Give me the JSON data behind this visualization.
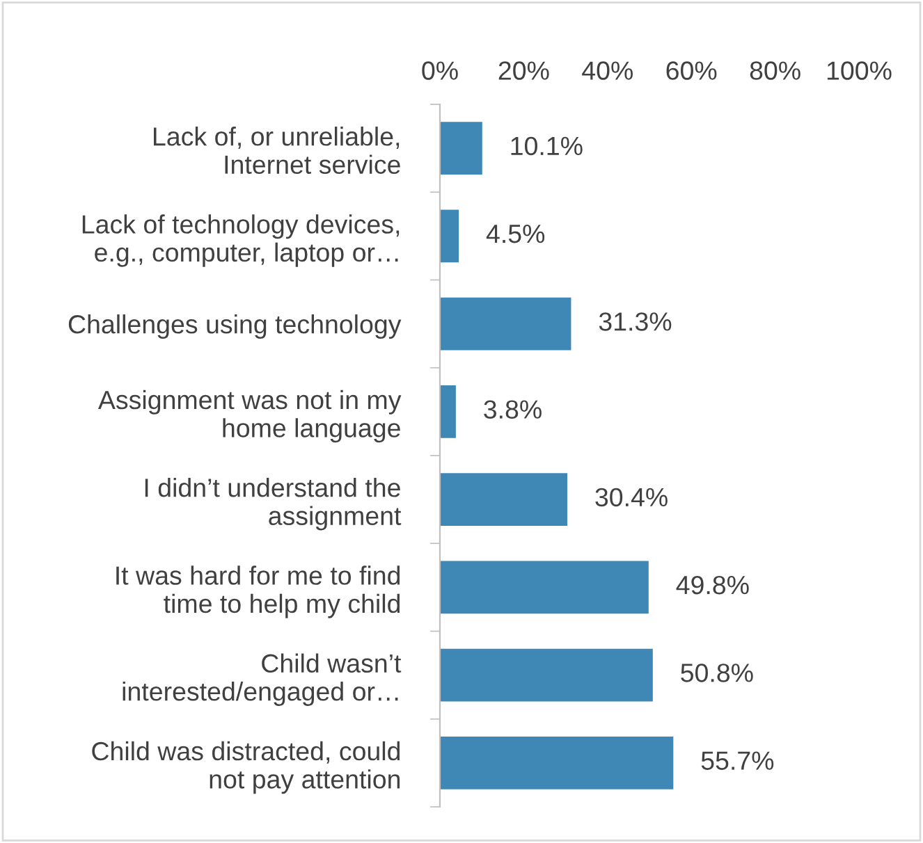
{
  "chart_data": {
    "type": "bar",
    "orientation": "horizontal",
    "categories": [
      "Lack of, or unreliable,\nInternet service",
      "Lack of technology devices,\ne.g., computer, laptop or…",
      "Challenges using technology",
      "Assignment was not in my\nhome language",
      "I didn’t understand the\nassignment",
      "It was hard for me to find\ntime to help my child",
      "Child wasn’t\ninterested/engaged or…",
      "Child was distracted, could\nnot pay attention"
    ],
    "values": [
      10.1,
      4.5,
      31.3,
      3.8,
      30.4,
      49.8,
      50.8,
      55.7
    ],
    "value_labels": [
      "10.1%",
      "4.5%",
      "31.3%",
      "3.8%",
      "30.4%",
      "49.8%",
      "50.8%",
      "55.7%"
    ],
    "color": "#3f88b5",
    "xlim": [
      0,
      100
    ],
    "xticks": [
      {
        "value": 0,
        "label": "0%"
      },
      {
        "value": 20,
        "label": "20%"
      },
      {
        "value": 40,
        "label": "40%"
      },
      {
        "value": 60,
        "label": "60%"
      },
      {
        "value": 80,
        "label": "80%"
      },
      {
        "value": 100,
        "label": "100%"
      }
    ],
    "grid": false,
    "legend": false
  }
}
